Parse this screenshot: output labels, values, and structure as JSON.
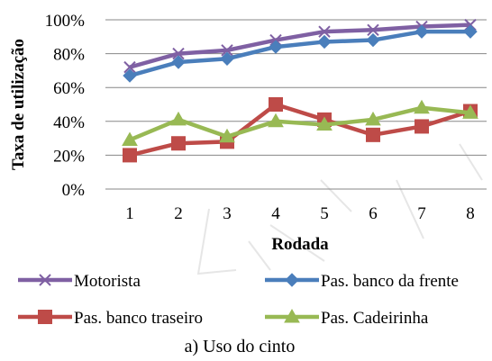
{
  "chart_data": {
    "type": "line",
    "title": "",
    "caption": "a) Uso do cinto",
    "xlabel": "Rodada",
    "ylabel": "Taxa de utilização",
    "x": [
      "1",
      "2",
      "3",
      "4",
      "5",
      "6",
      "7",
      "8"
    ],
    "y_ticks": [
      "0%",
      "20%",
      "40%",
      "60%",
      "80%",
      "100%"
    ],
    "ylim": [
      0,
      100
    ],
    "grid": true,
    "legend_position": "bottom",
    "series": [
      {
        "name": "Motorista",
        "color": "#7f60a3",
        "marker": "x",
        "values": [
          72,
          80,
          82,
          88,
          93,
          94,
          96,
          97
        ]
      },
      {
        "name": "Pas. banco da frente",
        "color": "#4a7ebb",
        "marker": "diamond",
        "values": [
          67,
          75,
          77,
          84,
          87,
          88,
          93,
          93
        ]
      },
      {
        "name": "Pas. banco traseiro",
        "color": "#be4b48",
        "marker": "square",
        "values": [
          20,
          27,
          28,
          50,
          41,
          32,
          37,
          46
        ]
      },
      {
        "name": "Pas. Cadeirinha",
        "color": "#98b954",
        "marker": "triangle",
        "values": [
          29,
          41,
          31,
          40,
          38,
          41,
          48,
          45
        ]
      }
    ]
  }
}
